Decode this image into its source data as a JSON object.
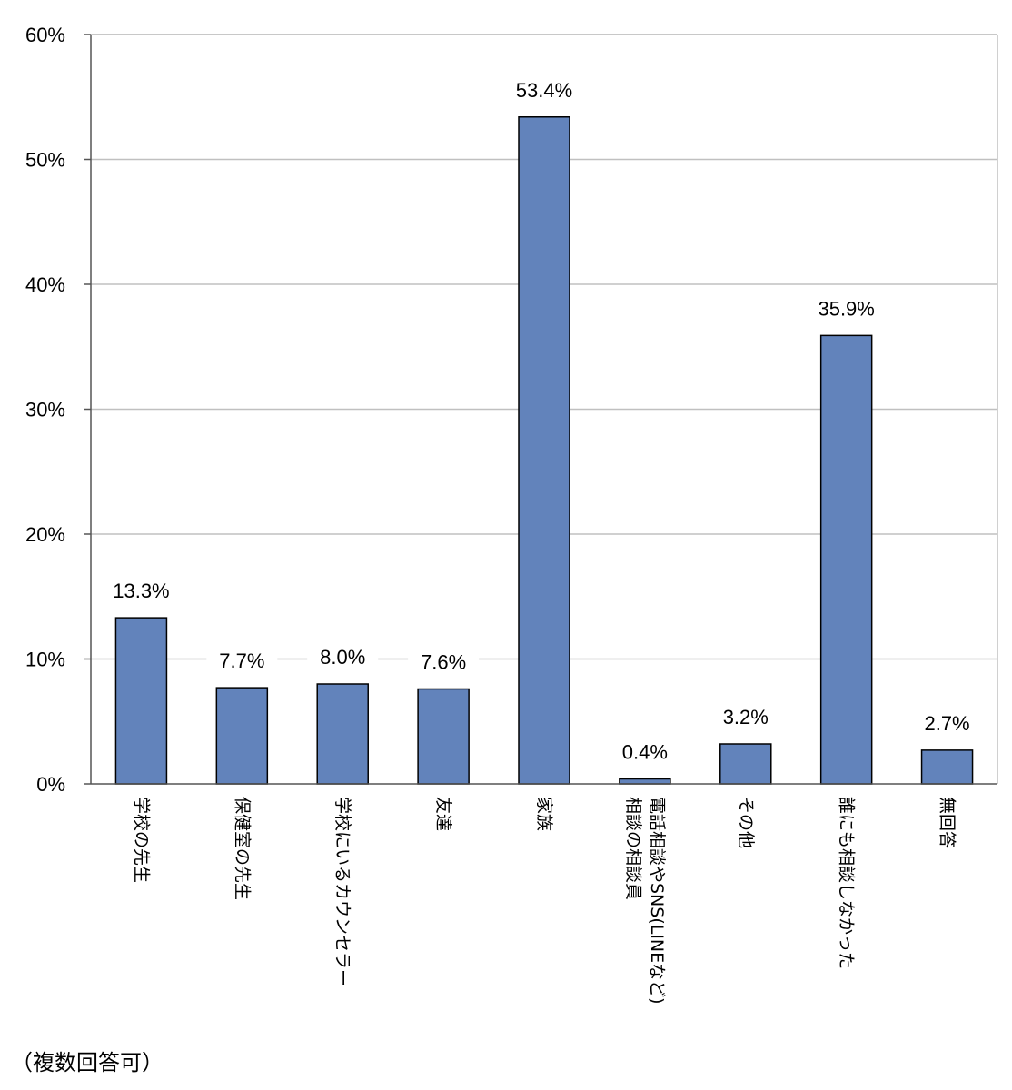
{
  "chart_data": {
    "type": "bar",
    "categories": [
      "学校の先生",
      "保健室の先生",
      "学校にいるカウンセラー",
      "友達",
      "家族",
      "電話相談やSNS(LINEなど)相談の相談員",
      "その他",
      "誰にも相談しなかった",
      "無回答"
    ],
    "category_lines": [
      [
        "学校の先生"
      ],
      [
        "保健室の先生"
      ],
      [
        "学校にいるカウンセラー"
      ],
      [
        "友達"
      ],
      [
        "家族"
      ],
      [
        "電話相談やSNS(LINEなど)",
        "相談の相談員"
      ],
      [
        "その他"
      ],
      [
        "誰にも相談しなかった"
      ],
      [
        "無回答"
      ]
    ],
    "values": [
      13.3,
      7.7,
      8.0,
      7.6,
      53.4,
      0.4,
      3.2,
      35.9,
      2.7
    ],
    "value_labels": [
      "13.3%",
      "7.7%",
      "8.0%",
      "7.6%",
      "53.4%",
      "0.4%",
      "3.2%",
      "35.9%",
      "2.7%"
    ],
    "ylim": [
      0,
      60
    ],
    "yticks": [
      0,
      10,
      20,
      30,
      40,
      50,
      60
    ],
    "ytick_labels": [
      "0%",
      "10%",
      "20%",
      "30%",
      "40%",
      "50%",
      "60%"
    ],
    "grid": true,
    "bar_color": "#6283bb",
    "title": "",
    "xlabel": "",
    "ylabel": ""
  },
  "note": "（複数回答可）"
}
